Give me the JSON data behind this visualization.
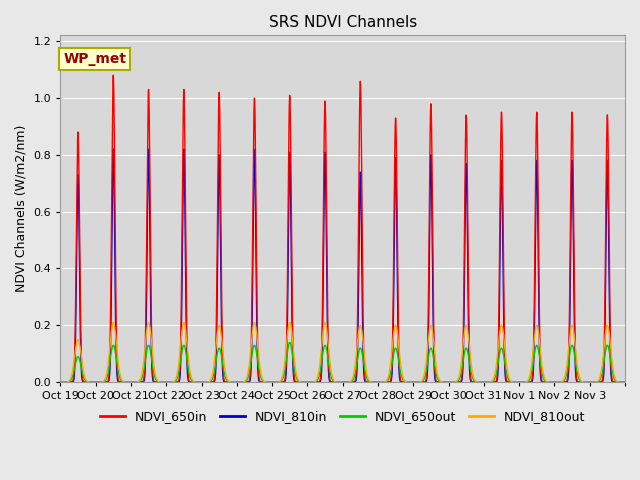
{
  "title": "SRS NDVI Channels",
  "ylabel": "NDVI Channels (W/m2/nm)",
  "xlabel": "",
  "ylim": [
    0,
    1.22
  ],
  "background_color": "#e8e8e8",
  "plot_bg_color": "#d8d8d8",
  "grid_color": "#ffffff",
  "annotation_text": "WP_met",
  "annotation_facecolor": "#ffffcc",
  "annotation_edgecolor": "#aaaa00",
  "annotation_textcolor": "#990000",
  "colors": {
    "NDVI_650in": "#ff0000",
    "NDVI_810in": "#0000cc",
    "NDVI_650out": "#00cc00",
    "NDVI_810out": "#ffaa00"
  },
  "line_width": 1.0,
  "tick_labels": [
    "Oct 19",
    "Oct 20",
    "Oct 21",
    "Oct 22",
    "Oct 23",
    "Oct 24",
    "Oct 25",
    "Oct 26",
    "Oct 27",
    "Oct 28",
    "Oct 29",
    "Oct 30",
    "Oct 31",
    "Nov 1",
    "Nov 2",
    "Nov 3"
  ],
  "n_days": 16,
  "peaks_650in": [
    0.88,
    1.08,
    1.03,
    1.03,
    1.02,
    1.0,
    1.01,
    0.99,
    1.06,
    0.93,
    0.98,
    0.94,
    0.95,
    0.95,
    0.95,
    0.94
  ],
  "peaks_810in": [
    0.73,
    0.82,
    0.82,
    0.82,
    0.8,
    0.82,
    0.81,
    0.81,
    0.74,
    0.79,
    0.8,
    0.77,
    0.78,
    0.78,
    0.78,
    0.78
  ],
  "peaks_650out": [
    0.09,
    0.13,
    0.13,
    0.13,
    0.12,
    0.13,
    0.14,
    0.13,
    0.12,
    0.12,
    0.12,
    0.12,
    0.12,
    0.13,
    0.13,
    0.13
  ],
  "peaks_810out": [
    0.15,
    0.21,
    0.21,
    0.21,
    0.2,
    0.21,
    0.21,
    0.21,
    0.2,
    0.2,
    0.2,
    0.2,
    0.2,
    0.2,
    0.2,
    0.2
  ],
  "legend_entries": [
    "NDVI_650in",
    "NDVI_810in",
    "NDVI_650out",
    "NDVI_810out"
  ],
  "title_fontsize": 11,
  "label_fontsize": 9,
  "tick_fontsize": 8,
  "legend_fontsize": 9
}
